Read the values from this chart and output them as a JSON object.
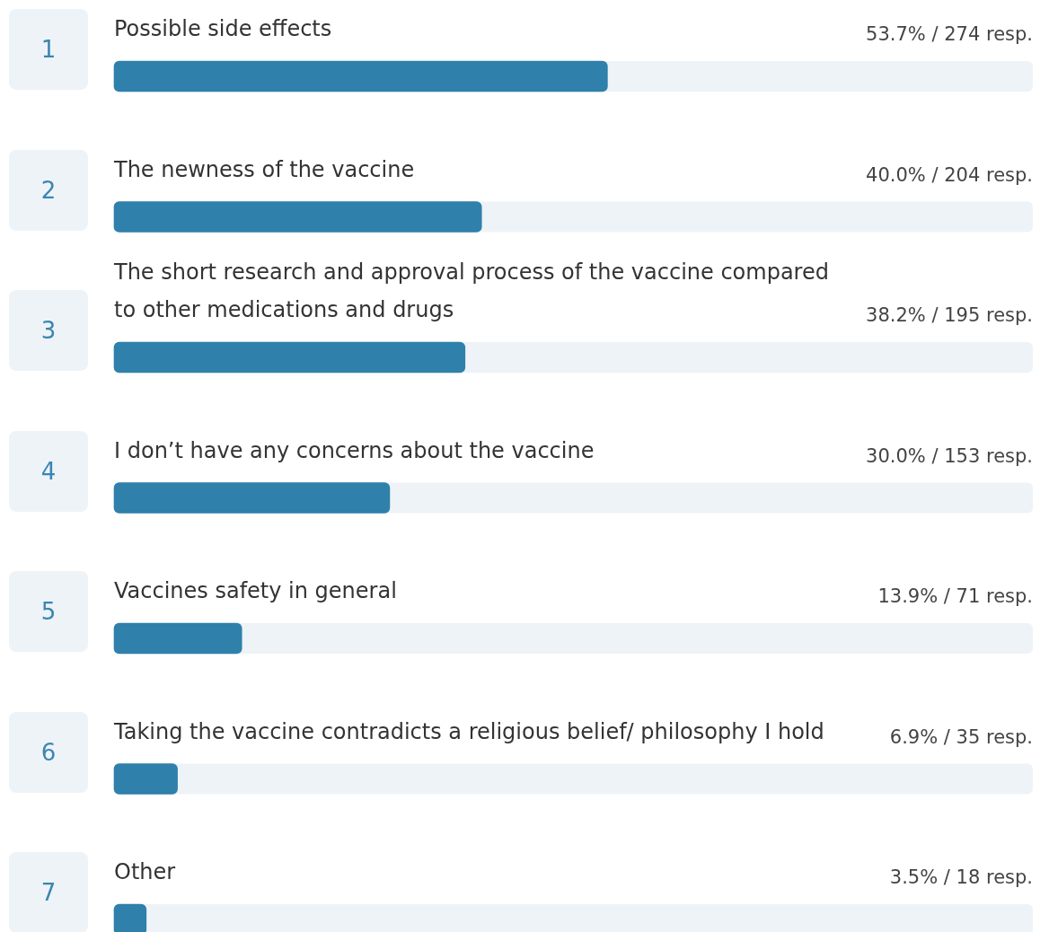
{
  "chart_data": {
    "type": "bar",
    "orientation": "horizontal",
    "categories": [
      "Possible side effects",
      "The newness of the vaccine",
      "The short research and approval process of the vaccine compared to other medications and drugs",
      "I don’t have any concerns about the vaccine",
      "Vaccines safety in general",
      "Taking the vaccine contradicts a religious belief/ philosophy I hold",
      "Other"
    ],
    "values": [
      53.7,
      40.0,
      38.2,
      30.0,
      13.9,
      6.9,
      3.5
    ],
    "value_labels": [
      "53.7% / 274 resp.",
      "40.0% / 204 resp.",
      "38.2% / 195 resp.",
      "30.0% / 153 resp.",
      "13.9% / 71 resp.",
      "6.9% / 35 resp.",
      "3.5% / 18 resp."
    ],
    "color": "#2f80aa",
    "xlim": [
      0,
      100
    ],
    "annotations": [
      "1",
      "2",
      "3",
      "4",
      "5",
      "6",
      "7"
    ],
    "legend": false
  }
}
